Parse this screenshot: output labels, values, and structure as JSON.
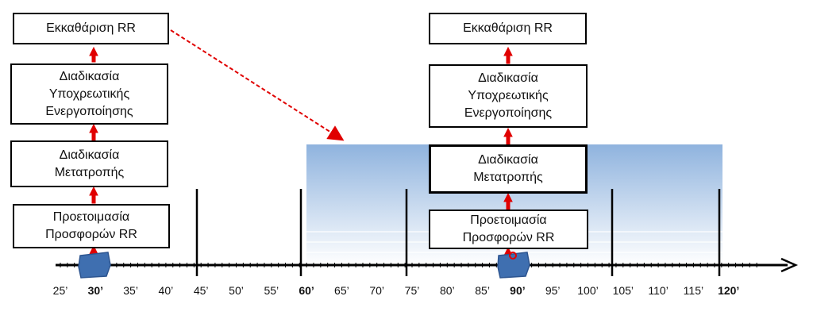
{
  "colors": {
    "arrow": "#e00000",
    "axis": "#000000",
    "shade_top": "#8fb3de",
    "shade_bottom": "#ffffff",
    "marker": "#3f6fb0"
  },
  "left_stack": {
    "clearing": "Εκκαθάριση RR",
    "mandatory_activation": "Διαδικασία\nΥποχρεωτικής\nΕνεργοποίησης",
    "conversion": "Διαδικασία\nΜετατροπής",
    "bid_preparation": "Προετοιμασία\nΠροσφορών RR"
  },
  "right_stack": {
    "clearing": "Εκκαθάριση RR",
    "mandatory_activation": "Διαδικασία\nΥποχρεωτικής\nΕνεργοποίησης",
    "conversion": "Διαδικασία\nΜετατροπής",
    "bid_preparation": "Προετοιμασία\nΠροσφορών RR"
  },
  "timeline": {
    "ticks": [
      "25’",
      "30’",
      "35’",
      "40’",
      "45’",
      "50’",
      "55’",
      "60’",
      "65’",
      "70’",
      "75’",
      "80’",
      "85’",
      "90’",
      "95’",
      "100’",
      "105’",
      "110’",
      "115’",
      "120’"
    ],
    "bold_ticks": [
      "30’",
      "60’",
      "90’",
      "120’"
    ],
    "major_lines": [
      "45’",
      "60’",
      "75’",
      "105’",
      "120’"
    ],
    "markers": [
      "30’",
      "90’"
    ],
    "shaded_range": [
      "60’",
      "120’"
    ]
  }
}
